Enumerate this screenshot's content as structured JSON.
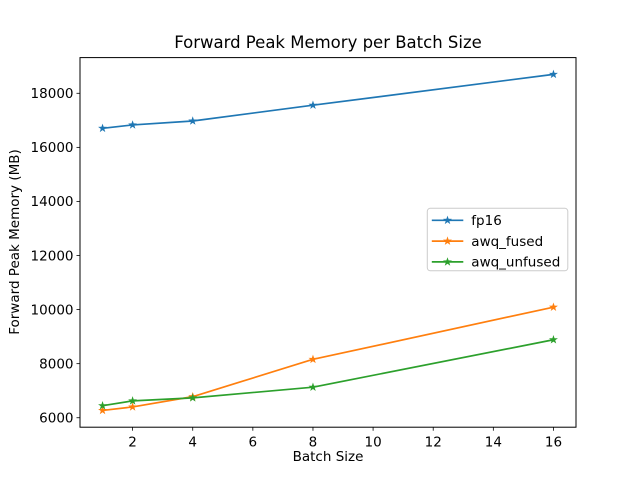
{
  "figure": {
    "title": "Forward Peak Memory per Batch Size",
    "xlabel": "Batch Size",
    "ylabel": "Forward Peak Memory (MB)"
  },
  "chart_data": {
    "type": "line",
    "title": "Forward Peak Memory per Batch Size",
    "xlabel": "Batch Size",
    "ylabel": "Forward Peak Memory (MB)",
    "x": [
      1,
      2,
      4,
      8,
      16
    ],
    "series": [
      {
        "name": "fp16",
        "color": "#1f77b4",
        "values": [
          16705,
          16830,
          16975,
          17560,
          18700
        ]
      },
      {
        "name": "awq_fused",
        "color": "#ff7f0e",
        "values": [
          6270,
          6400,
          6780,
          8160,
          10090
        ]
      },
      {
        "name": "awq_unfused",
        "color": "#2ca02c",
        "values": [
          6445,
          6625,
          6735,
          7130,
          8885
        ]
      }
    ],
    "marker": "star",
    "xlim": [
      0.25,
      16.75
    ],
    "ylim": [
      5650,
      19320
    ],
    "xticks": [
      2,
      4,
      6,
      8,
      10,
      12,
      14,
      16
    ],
    "yticks": [
      6000,
      8000,
      10000,
      12000,
      14000,
      16000,
      18000
    ],
    "grid": false,
    "legend": {
      "position": "center right",
      "labels": [
        "fp16",
        "awq_fused",
        "awq_unfused"
      ],
      "border_color": "#cccccc",
      "background": "#ffffff"
    },
    "spine_color": "#000000",
    "background": "#ffffff"
  }
}
